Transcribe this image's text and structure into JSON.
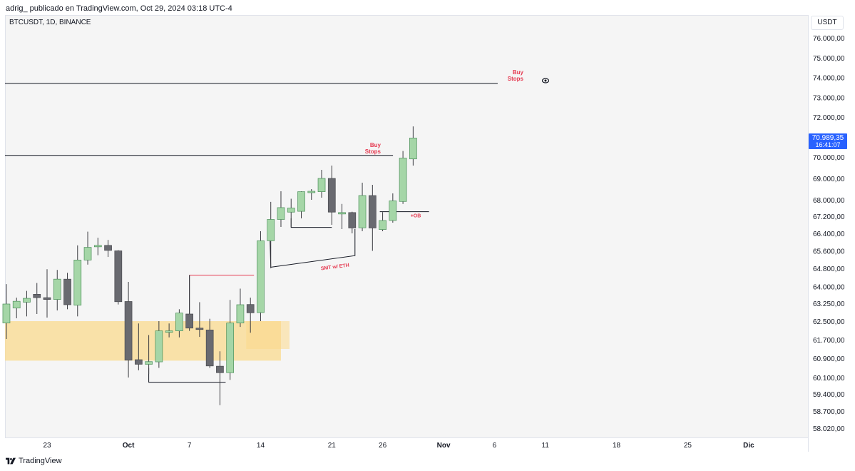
{
  "header": {
    "attribution": "adrig_ publicado en TradingView.com, Oct 29, 2024 03:18 UTC-4"
  },
  "symbol": {
    "label": "BTCUSDT, 1D, BINANCE"
  },
  "currency": "USDT",
  "footer": {
    "brand": "TradingView",
    "logo_icon": "tradingview-logo-icon"
  },
  "price_tag": {
    "price": "70.989,35",
    "countdown": "16:41:07",
    "color": "#2962ff"
  },
  "colors": {
    "up": "#a5d6a7",
    "up_border": "#4c8f5a",
    "down": "#696a70",
    "zone": "#fbd98a",
    "label_red": "#e53950"
  },
  "chart_data": {
    "type": "candlestick",
    "interval": "1D",
    "y_ticks": [
      {
        "value": 76000,
        "label": "76.000,00"
      },
      {
        "value": 75000,
        "label": "75.000,00"
      },
      {
        "value": 74000,
        "label": "74.000,00"
      },
      {
        "value": 73000,
        "label": "73.000,00"
      },
      {
        "value": 72000,
        "label": "72.000,00"
      },
      {
        "value": 70000,
        "label": "70.000,00"
      },
      {
        "value": 69000,
        "label": "69.000,00"
      },
      {
        "value": 68000,
        "label": "68.000,00"
      },
      {
        "value": 67200,
        "label": "67.200,00"
      },
      {
        "value": 66400,
        "label": "66.400,00"
      },
      {
        "value": 65600,
        "label": "65.600,00"
      },
      {
        "value": 64800,
        "label": "64.800,00"
      },
      {
        "value": 64000,
        "label": "64.000,00"
      },
      {
        "value": 63250,
        "label": "63.250,00"
      },
      {
        "value": 62500,
        "label": "62.500,00"
      },
      {
        "value": 61700,
        "label": "61.700,00"
      },
      {
        "value": 60900,
        "label": "60.900,00"
      },
      {
        "value": 60100,
        "label": "60.100,00"
      },
      {
        "value": 59400,
        "label": "59.400,00"
      },
      {
        "value": 58700,
        "label": "58.700,00"
      },
      {
        "value": 58020,
        "label": "58.020,00"
      }
    ],
    "x_ticks": [
      {
        "day": 23,
        "label": "23"
      },
      {
        "day": 31,
        "label": "Oct"
      },
      {
        "day": 37,
        "label": "7"
      },
      {
        "day": 44,
        "label": "14"
      },
      {
        "day": 51,
        "label": "21"
      },
      {
        "day": 56,
        "label": "26"
      },
      {
        "day": 62,
        "label": "Nov"
      },
      {
        "day": 67,
        "label": "6"
      },
      {
        "day": 72,
        "label": "11"
      },
      {
        "day": 79,
        "label": "18"
      },
      {
        "day": 86,
        "label": "25"
      },
      {
        "day": 92,
        "label": "Dic"
      }
    ],
    "candles": [
      {
        "day": 19,
        "o": 62420,
        "h": 64100,
        "l": 61730,
        "c": 63220
      },
      {
        "day": 20,
        "o": 63050,
        "h": 63500,
        "l": 62620,
        "c": 63340
      },
      {
        "day": 21,
        "o": 63300,
        "h": 63800,
        "l": 62700,
        "c": 63470
      },
      {
        "day": 22,
        "o": 63650,
        "h": 64150,
        "l": 62800,
        "c": 63500
      },
      {
        "day": 23,
        "o": 63500,
        "h": 64760,
        "l": 62650,
        "c": 63420
      },
      {
        "day": 24,
        "o": 63420,
        "h": 64730,
        "l": 62950,
        "c": 64320
      },
      {
        "day": 25,
        "o": 64320,
        "h": 64600,
        "l": 63000,
        "c": 63190
      },
      {
        "day": 26,
        "o": 63170,
        "h": 65850,
        "l": 62700,
        "c": 65180
      },
      {
        "day": 27,
        "o": 65180,
        "h": 66480,
        "l": 64970,
        "c": 65760
      },
      {
        "day": 28,
        "o": 65790,
        "h": 66200,
        "l": 65400,
        "c": 65850
      },
      {
        "day": 29,
        "o": 65850,
        "h": 66100,
        "l": 65320,
        "c": 65620
      },
      {
        "day": 30,
        "o": 65600,
        "h": 65630,
        "l": 63200,
        "c": 63320
      },
      {
        "day": 31,
        "o": 63330,
        "h": 64200,
        "l": 60100,
        "c": 60820
      },
      {
        "day": 32,
        "o": 60840,
        "h": 62400,
        "l": 60400,
        "c": 60650
      },
      {
        "day": 33,
        "o": 60650,
        "h": 61900,
        "l": 60250,
        "c": 60760
      },
      {
        "day": 34,
        "o": 60750,
        "h": 62500,
        "l": 60500,
        "c": 62080
      },
      {
        "day": 35,
        "o": 62080,
        "h": 62400,
        "l": 61800,
        "c": 62080
      },
      {
        "day": 36,
        "o": 62080,
        "h": 63000,
        "l": 61800,
        "c": 62840
      },
      {
        "day": 37,
        "o": 62800,
        "h": 64500,
        "l": 62080,
        "c": 62200
      },
      {
        "day": 38,
        "o": 62200,
        "h": 63300,
        "l": 61820,
        "c": 62140
      },
      {
        "day": 39,
        "o": 62120,
        "h": 62600,
        "l": 60500,
        "c": 60580
      },
      {
        "day": 40,
        "o": 60570,
        "h": 61200,
        "l": 58940,
        "c": 60300
      },
      {
        "day": 41,
        "o": 60300,
        "h": 63400,
        "l": 60000,
        "c": 62420
      },
      {
        "day": 42,
        "o": 62420,
        "h": 63900,
        "l": 62250,
        "c": 63190
      },
      {
        "day": 43,
        "o": 63200,
        "h": 63500,
        "l": 62000,
        "c": 62850
      },
      {
        "day": 44,
        "o": 62860,
        "h": 66500,
        "l": 62500,
        "c": 66060
      },
      {
        "day": 45,
        "o": 66060,
        "h": 67900,
        "l": 64800,
        "c": 67050
      },
      {
        "day": 46,
        "o": 67050,
        "h": 68400,
        "l": 66700,
        "c": 67620
      },
      {
        "day": 47,
        "o": 67400,
        "h": 68050,
        "l": 66700,
        "c": 67600
      },
      {
        "day": 48,
        "o": 67440,
        "h": 68400,
        "l": 67100,
        "c": 68380
      },
      {
        "day": 49,
        "o": 68350,
        "h": 68500,
        "l": 68000,
        "c": 68400
      },
      {
        "day": 50,
        "o": 68380,
        "h": 69400,
        "l": 68100,
        "c": 69000
      },
      {
        "day": 51,
        "o": 69000,
        "h": 69600,
        "l": 66800,
        "c": 67400
      },
      {
        "day": 52,
        "o": 67360,
        "h": 67800,
        "l": 66600,
        "c": 67380
      },
      {
        "day": 53,
        "o": 67380,
        "h": 67420,
        "l": 66400,
        "c": 66650
      },
      {
        "day": 54,
        "o": 66660,
        "h": 68800,
        "l": 66500,
        "c": 68200
      },
      {
        "day": 55,
        "o": 68200,
        "h": 68700,
        "l": 65600,
        "c": 66650
      },
      {
        "day": 56,
        "o": 66580,
        "h": 67400,
        "l": 66500,
        "c": 67000
      },
      {
        "day": 57,
        "o": 67000,
        "h": 68300,
        "l": 66900,
        "c": 67950
      },
      {
        "day": 58,
        "o": 67920,
        "h": 70300,
        "l": 67800,
        "c": 69950
      },
      {
        "day": 59,
        "o": 69910,
        "h": 71530,
        "l": 69600,
        "c": 70950
      }
    ],
    "demand_zone": {
      "from_day": 19,
      "to_day": 46,
      "price_top": 62500,
      "price_bottom": 60800
    },
    "inner_zone": {
      "from_day": 43,
      "to_day": 46,
      "price_top": 62500,
      "price_bottom": 61300
    },
    "annotations": [
      {
        "label_line1": "Buy",
        "label_line2": "Stops",
        "price": 73700,
        "from_day": 18,
        "to_day": 69
      },
      {
        "label_line1": "Buy",
        "label_line2": "Stops",
        "price": 70080,
        "from_day": 18,
        "to_day": 58
      },
      {
        "label": "+OB",
        "price": 67420,
        "from_day": 56,
        "to_day": 60
      },
      {
        "label": "SMT w/ ETH"
      }
    ]
  }
}
